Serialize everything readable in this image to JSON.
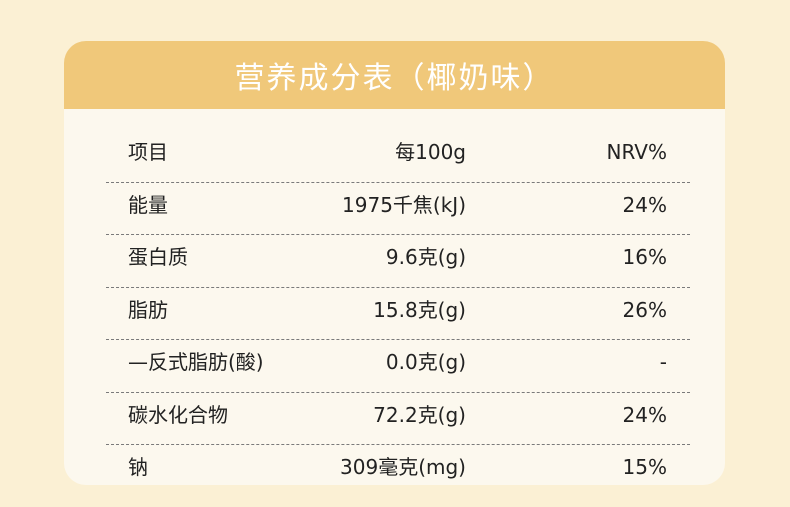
{
  "title": "营养成分表（椰奶味）",
  "headers": {
    "item": "项目",
    "per100g": "每100g",
    "nrv": "NRV%"
  },
  "rows": [
    {
      "name": "能量",
      "value": "1975千焦(kJ)",
      "nrv": "24%"
    },
    {
      "name": "蛋白质",
      "value": "9.6克(g)",
      "nrv": "16%"
    },
    {
      "name": "脂肪",
      "value": "15.8克(g)",
      "nrv": "26%"
    },
    {
      "name": "—反式脂肪(酸)",
      "value": "0.0克(g)",
      "nrv": "-"
    },
    {
      "name": "碳水化合物",
      "value": "72.2克(g)",
      "nrv": "24%"
    },
    {
      "name": "钠",
      "value": "309毫克(mg)",
      "nrv": "15%"
    }
  ],
  "colors": {
    "background": "#fbf0d4",
    "card": "#fcf8ee",
    "header": "#f0c87a",
    "title_text": "#ffffff",
    "body_text": "#222222"
  }
}
